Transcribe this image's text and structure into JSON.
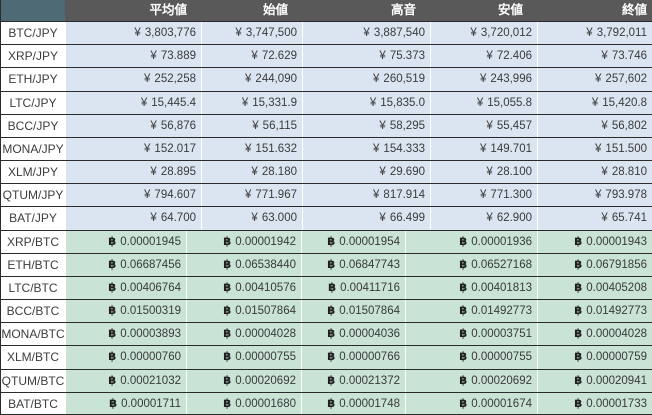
{
  "chart_data": {
    "type": "table",
    "title": "",
    "columns": [
      "",
      "平均値",
      "始値",
      "高音",
      "安値",
      "終値"
    ],
    "sections": [
      {
        "id": "jpy",
        "symbol": "¥",
        "rows": [
          {
            "pair": "BTC/JPY",
            "values": [
              "3,803,776",
              "3,747,500",
              "3,887,540",
              "3,720,012",
              "3,792,011"
            ]
          },
          {
            "pair": "XRP/JPY",
            "values": [
              "73.889",
              "72.629",
              "75.373",
              "72.406",
              "73.746"
            ]
          },
          {
            "pair": "ETH/JPY",
            "values": [
              "252,258",
              "244,090",
              "260,519",
              "243,996",
              "257,602"
            ]
          },
          {
            "pair": "LTC/JPY",
            "values": [
              "15,445.4",
              "15,331.9",
              "15,835.0",
              "15,055.8",
              "15,420.8"
            ]
          },
          {
            "pair": "BCC/JPY",
            "values": [
              "56,876",
              "56,115",
              "58,295",
              "55,457",
              "56,802"
            ]
          },
          {
            "pair": "MONA/JPY",
            "values": [
              "152.017",
              "151.632",
              "154.333",
              "149.701",
              "151.500"
            ]
          },
          {
            "pair": "XLM/JPY",
            "values": [
              "28.895",
              "28.180",
              "29.690",
              "28.100",
              "28.810"
            ]
          },
          {
            "pair": "QTUM/JPY",
            "values": [
              "794.607",
              "771.967",
              "817.914",
              "771.300",
              "793.978"
            ]
          },
          {
            "pair": "BAT/JPY",
            "values": [
              "64.700",
              "63.000",
              "66.499",
              "62.900",
              "65.741"
            ]
          }
        ]
      },
      {
        "id": "btc",
        "symbol": "฿",
        "rows": [
          {
            "pair": "XRP/BTC",
            "values": [
              "0.00001945",
              "0.00001942",
              "0.00001954",
              "0.00001936",
              "0.00001943"
            ]
          },
          {
            "pair": "ETH/BTC",
            "values": [
              "0.06687456",
              "0.06538440",
              "0.06847743",
              "0.06527168",
              "0.06791856"
            ]
          },
          {
            "pair": "LTC/BTC",
            "values": [
              "0.00406764",
              "0.00410576",
              "0.00411716",
              "0.00401813",
              "0.00405208"
            ]
          },
          {
            "pair": "BCC/BTC",
            "values": [
              "0.01500319",
              "0.01507864",
              "0.01507864",
              "0.01492773",
              "0.01492773"
            ]
          },
          {
            "pair": "MONA/BTC",
            "values": [
              "0.00003893",
              "0.00004028",
              "0.00004036",
              "0.00003751",
              "0.00004028"
            ]
          },
          {
            "pair": "XLM/BTC",
            "values": [
              "0.00000760",
              "0.00000755",
              "0.00000766",
              "0.00000755",
              "0.00000759"
            ]
          },
          {
            "pair": "QTUM/BTC",
            "values": [
              "0.00021032",
              "0.00020692",
              "0.00021372",
              "0.00020692",
              "0.00020941"
            ]
          },
          {
            "pair": "BAT/BTC",
            "values": [
              "0.00001711",
              "0.00001680",
              "0.00001748",
              "0.00001674",
              "0.00001733"
            ]
          }
        ]
      }
    ]
  },
  "colors": {
    "header_bg": "#595959",
    "corner_bg": "#4e6a75",
    "header_text": "#ffffff",
    "jpy_cell_bg": "#dbe5f1",
    "btc_cell_bg": "#c9e3d5",
    "label_bg": "#ffffff",
    "text": "#3a3a3a",
    "row_border": "#2b2b2b"
  }
}
